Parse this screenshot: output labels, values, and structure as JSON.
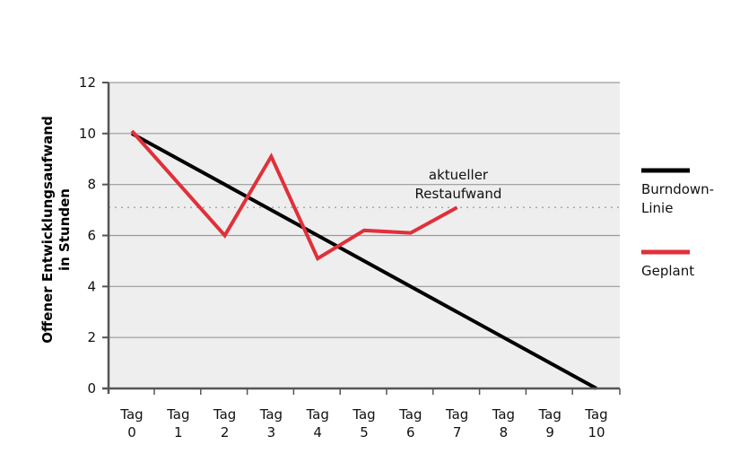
{
  "chart_data": {
    "type": "line",
    "categories": [
      "Tag 0",
      "Tag 1",
      "Tag 2",
      "Tag 3",
      "Tag 4",
      "Tag 5",
      "Tag 6",
      "Tag 7",
      "Tag 8",
      "Tag 9",
      "Tag 10"
    ],
    "category_lines": [
      [
        "Tag",
        "0"
      ],
      [
        "Tag",
        "1"
      ],
      [
        "Tag",
        "2"
      ],
      [
        "Tag",
        "3"
      ],
      [
        "Tag",
        "4"
      ],
      [
        "Tag",
        "5"
      ],
      [
        "Tag",
        "6"
      ],
      [
        "Tag",
        "7"
      ],
      [
        "Tag",
        "8"
      ],
      [
        "Tag",
        "9"
      ],
      [
        "Tag",
        "10"
      ]
    ],
    "ylabel_lines": [
      "Offener Entwicklungsaufwand",
      "in Stunden"
    ],
    "ylim": [
      0,
      12
    ],
    "yticks": [
      0,
      2,
      4,
      6,
      8,
      10,
      12
    ],
    "grid": true,
    "legend_position": "right",
    "series": [
      {
        "name_lines": [
          "Burndown-",
          "Linie"
        ],
        "color": "#000000",
        "points": [
          [
            0,
            10
          ],
          [
            10,
            0
          ]
        ]
      },
      {
        "name_lines": [
          "Geplant"
        ],
        "color": "#e0303a",
        "points": [
          [
            0,
            10.1
          ],
          [
            2,
            6.0
          ],
          [
            3,
            9.1
          ],
          [
            4,
            5.1
          ],
          [
            5,
            6.2
          ],
          [
            6,
            6.1
          ],
          [
            7,
            7.1
          ]
        ]
      }
    ],
    "reference_line": {
      "y": 7.1,
      "color": "#a8a8a8",
      "label_lines": [
        "aktueller",
        "Restaufwand"
      ]
    }
  }
}
